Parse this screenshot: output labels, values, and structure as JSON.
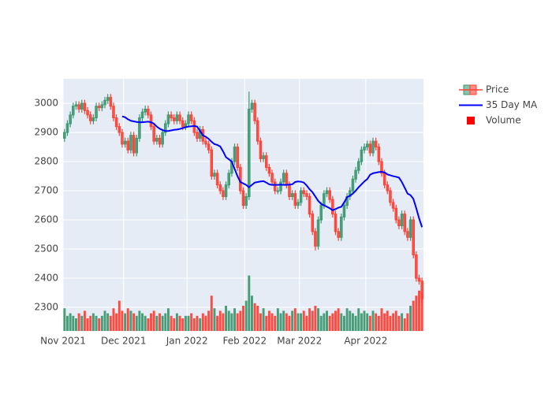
{
  "chart_data": {
    "type": "candlestick",
    "categories": [
      null,
      null,
      null,
      null,
      null,
      null,
      null,
      null,
      null,
      null,
      null,
      null,
      null,
      null,
      null,
      null,
      null,
      null,
      null,
      null,
      null,
      null,
      null,
      null,
      null,
      null,
      null,
      null,
      null,
      null,
      null,
      null,
      null,
      null,
      null,
      null,
      null,
      null,
      null,
      null,
      null,
      null,
      null,
      null,
      null,
      null,
      null,
      null,
      null,
      null,
      null,
      null,
      null,
      null,
      null,
      null,
      null,
      null,
      null,
      null,
      null,
      null,
      null,
      null,
      null,
      null,
      null,
      null,
      null,
      null,
      null,
      null,
      null,
      null,
      null,
      null,
      null,
      null,
      null,
      null,
      null,
      null,
      null,
      null,
      null,
      null,
      null,
      null,
      null,
      null,
      null,
      null,
      null,
      null,
      null,
      null,
      null,
      null,
      null,
      null,
      null,
      null,
      null,
      null,
      null,
      null,
      null,
      null,
      null,
      null,
      null,
      null,
      null,
      null,
      null,
      null,
      null,
      null,
      null,
      null,
      null,
      null,
      null,
      null,
      null
    ],
    "xlim": [
      0,
      125
    ],
    "xticks": [
      {
        "value": 0,
        "label": "Nov 2021"
      },
      {
        "value": 21,
        "label": "Dec 2021"
      },
      {
        "value": 43,
        "label": "Jan 2022"
      },
      {
        "value": 63,
        "label": "Feb 2022"
      },
      {
        "value": 82,
        "label": "Mar 2022"
      },
      {
        "value": 105,
        "label": "Apr 2022"
      }
    ],
    "ylim": [
      2219,
      3084
    ],
    "yticks": [
      2300,
      2400,
      2500,
      2600,
      2700,
      2800,
      2900,
      3000
    ],
    "y2lim": [
      0,
      100
    ],
    "grid": true,
    "legend": "top-right",
    "series": [
      {
        "name": "Price",
        "type": "candlestick",
        "increasing_color": "#3d9970",
        "decreasing_color": "#ff4136",
        "open": [
          2880,
          2900,
          2930,
          2960,
          2990,
          2995,
          2980,
          3000,
          2975,
          2960,
          2940,
          2950,
          2990,
          2985,
          2995,
          3010,
          3020,
          2990,
          2950,
          2920,
          2900,
          2860,
          2870,
          2840,
          2890,
          2830,
          2880,
          2950,
          2970,
          2980,
          2960,
          2920,
          2870,
          2880,
          2860,
          2900,
          2930,
          2960,
          2950,
          2940,
          2960,
          2940,
          2920,
          2930,
          2960,
          2940,
          2900,
          2880,
          2910,
          2870,
          2860,
          2840,
          2750,
          2760,
          2720,
          2700,
          2680,
          2720,
          2760,
          2800,
          2850,
          2780,
          2700,
          2650,
          2680,
          2980,
          3000,
          2940,
          2870,
          2810,
          2820,
          2780,
          2760,
          2730,
          2700,
          2700,
          2730,
          2760,
          2720,
          2680,
          2690,
          2650,
          2660,
          2700,
          2690,
          2680,
          2620,
          2560,
          2510,
          2600,
          2650,
          2690,
          2700,
          2670,
          2620,
          2560,
          2540,
          2610,
          2650,
          2680,
          2700,
          2740,
          2770,
          2800,
          2840,
          2850,
          2860,
          2830,
          2870,
          2850,
          2800,
          2760,
          2720,
          2700,
          2660,
          2640,
          2600,
          2580,
          2620,
          2560,
          2540,
          2600,
          2480,
          2400,
          2390
        ],
        "high": [
          2912,
          2942,
          2972,
          3002,
          3007,
          3007,
          3012,
          3012,
          2987,
          2972,
          2962,
          3002,
          3002,
          3007,
          3022,
          3032,
          3032,
          3002,
          2962,
          2932,
          2912,
          2882,
          2882,
          2902,
          2902,
          2892,
          2962,
          2982,
          2992,
          2992,
          2972,
          2932,
          2892,
          2892,
          2912,
          2942,
          2972,
          2972,
          2962,
          2972,
          2972,
          2952,
          2942,
          2972,
          2972,
          2952,
          2912,
          2922,
          2922,
          2882,
          2872,
          2852,
          2772,
          2772,
          2732,
          2712,
          2732,
          2772,
          2812,
          2862,
          2862,
          2792,
          2712,
          2692,
          3040,
          3012,
          3012,
          2952,
          2882,
          2832,
          2832,
          2792,
          2772,
          2742,
          2712,
          2742,
          2772,
          2772,
          2732,
          2702,
          2702,
          2672,
          2712,
          2712,
          2702,
          2692,
          2632,
          2572,
          2612,
          2662,
          2702,
          2712,
          2712,
          2682,
          2632,
          2572,
          2622,
          2662,
          2692,
          2712,
          2752,
          2782,
          2812,
          2852,
          2862,
          2872,
          2872,
          2882,
          2882,
          2862,
          2812,
          2772,
          2732,
          2712,
          2672,
          2652,
          2612,
          2632,
          2632,
          2572,
          2612,
          2612,
          2492,
          2412,
          2402
        ],
        "low": [
          2868,
          2888,
          2918,
          2948,
          2978,
          2968,
          2968,
          2963,
          2948,
          2928,
          2928,
          2938,
          2973,
          2973,
          2983,
          2998,
          2978,
          2938,
          2908,
          2888,
          2848,
          2848,
          2828,
          2828,
          2818,
          2818,
          2868,
          2938,
          2958,
          2948,
          2908,
          2858,
          2858,
          2848,
          2848,
          2888,
          2918,
          2938,
          2928,
          2928,
          2928,
          2908,
          2908,
          2918,
          2928,
          2888,
          2868,
          2868,
          2858,
          2848,
          2828,
          2738,
          2738,
          2708,
          2688,
          2668,
          2668,
          2708,
          2748,
          2788,
          2768,
          2688,
          2638,
          2638,
          2668,
          2968,
          2928,
          2858,
          2798,
          2798,
          2768,
          2748,
          2718,
          2688,
          2688,
          2688,
          2718,
          2708,
          2668,
          2668,
          2638,
          2638,
          2648,
          2678,
          2668,
          2608,
          2548,
          2495,
          2498,
          2588,
          2638,
          2678,
          2658,
          2608,
          2548,
          2528,
          2528,
          2598,
          2638,
          2668,
          2688,
          2728,
          2758,
          2788,
          2828,
          2838,
          2818,
          2818,
          2838,
          2788,
          2748,
          2708,
          2688,
          2648,
          2628,
          2588,
          2568,
          2568,
          2548,
          2528,
          2528,
          2468,
          2388,
          2378,
          2318
        ],
        "close": [
          2900,
          2930,
          2960,
          2990,
          2995,
          2980,
          3000,
          2975,
          2960,
          2940,
          2950,
          2990,
          2985,
          2995,
          3010,
          3020,
          2990,
          2950,
          2920,
          2900,
          2860,
          2870,
          2840,
          2890,
          2830,
          2880,
          2950,
          2970,
          2980,
          2960,
          2920,
          2870,
          2880,
          2860,
          2900,
          2930,
          2960,
          2950,
          2940,
          2960,
          2940,
          2920,
          2930,
          2960,
          2940,
          2900,
          2880,
          2910,
          2870,
          2860,
          2840,
          2750,
          2760,
          2720,
          2700,
          2680,
          2720,
          2760,
          2800,
          2850,
          2780,
          2700,
          2650,
          2680,
          2980,
          3000,
          2940,
          2870,
          2810,
          2820,
          2780,
          2760,
          2730,
          2700,
          2700,
          2730,
          2760,
          2720,
          2680,
          2690,
          2650,
          2660,
          2700,
          2690,
          2680,
          2620,
          2560,
          2510,
          2600,
          2650,
          2690,
          2700,
          2670,
          2620,
          2560,
          2540,
          2610,
          2650,
          2680,
          2700,
          2740,
          2770,
          2800,
          2840,
          2850,
          2860,
          2830,
          2870,
          2850,
          2800,
          2760,
          2720,
          2700,
          2660,
          2640,
          2600,
          2580,
          2620,
          2560,
          2540,
          2600,
          2480,
          2400,
          2390,
          2330
        ]
      },
      {
        "name": "35 Day MA",
        "type": "line",
        "color": "#0000ff",
        "values": [
          null,
          null,
          null,
          null,
          null,
          null,
          null,
          null,
          null,
          null,
          null,
          null,
          null,
          null,
          null,
          null,
          null,
          null,
          null,
          null,
          2955,
          2952,
          2945,
          2940,
          2938,
          2936,
          2935,
          2935,
          2936,
          2937,
          2935,
          2930,
          2920,
          2913,
          2908,
          2905,
          2905,
          2907,
          2909,
          2910,
          2912,
          2915,
          2918,
          2920,
          2921,
          2922,
          2920,
          2905,
          2890,
          2885,
          2878,
          2868,
          2860,
          2857,
          2852,
          2835,
          2815,
          2808,
          2800,
          2775,
          2750,
          2730,
          2725,
          2720,
          2712,
          2720,
          2728,
          2730,
          2732,
          2733,
          2728,
          2722,
          2720,
          2720,
          2720,
          2721,
          2720,
          2720,
          2721,
          2722,
          2730,
          2732,
          2731,
          2728,
          2718,
          2705,
          2695,
          2680,
          2665,
          2655,
          2650,
          2645,
          2640,
          2633,
          2637,
          2642,
          2645,
          2660,
          2678,
          2683,
          2690,
          2700,
          2712,
          2722,
          2732,
          2740,
          2755,
          2760,
          2762,
          2764,
          2765,
          2763,
          2756,
          2753,
          2750,
          2748,
          2745,
          2730,
          2710,
          2690,
          2685,
          2672,
          2640,
          2605,
          2575
        ]
      },
      {
        "name": "Volume",
        "type": "bar",
        "axis": "y2",
        "color": "#ff0000",
        "values": [
          9,
          6,
          7,
          6,
          5,
          7,
          6,
          8,
          5,
          6,
          7,
          6,
          5,
          6,
          8,
          7,
          6,
          9,
          7,
          12,
          8,
          7,
          9,
          8,
          7,
          6,
          8,
          7,
          6,
          5,
          7,
          8,
          6,
          7,
          6,
          7,
          9,
          6,
          5,
          7,
          6,
          5,
          6,
          6,
          7,
          5,
          6,
          5,
          7,
          6,
          8,
          14,
          9,
          6,
          8,
          7,
          10,
          8,
          7,
          9,
          7,
          8,
          10,
          12,
          22,
          14,
          11,
          10,
          7,
          9,
          6,
          8,
          7,
          6,
          9,
          7,
          8,
          7,
          6,
          8,
          9,
          7,
          7,
          8,
          6,
          9,
          8,
          10,
          9,
          6,
          7,
          8,
          6,
          7,
          8,
          9,
          7,
          6,
          9,
          8,
          7,
          6,
          9,
          7,
          8,
          7,
          6,
          8,
          7,
          6,
          9,
          7,
          8,
          6,
          7,
          8,
          6,
          7,
          5,
          7,
          10,
          12,
          14,
          16,
          15
        ]
      }
    ]
  }
}
